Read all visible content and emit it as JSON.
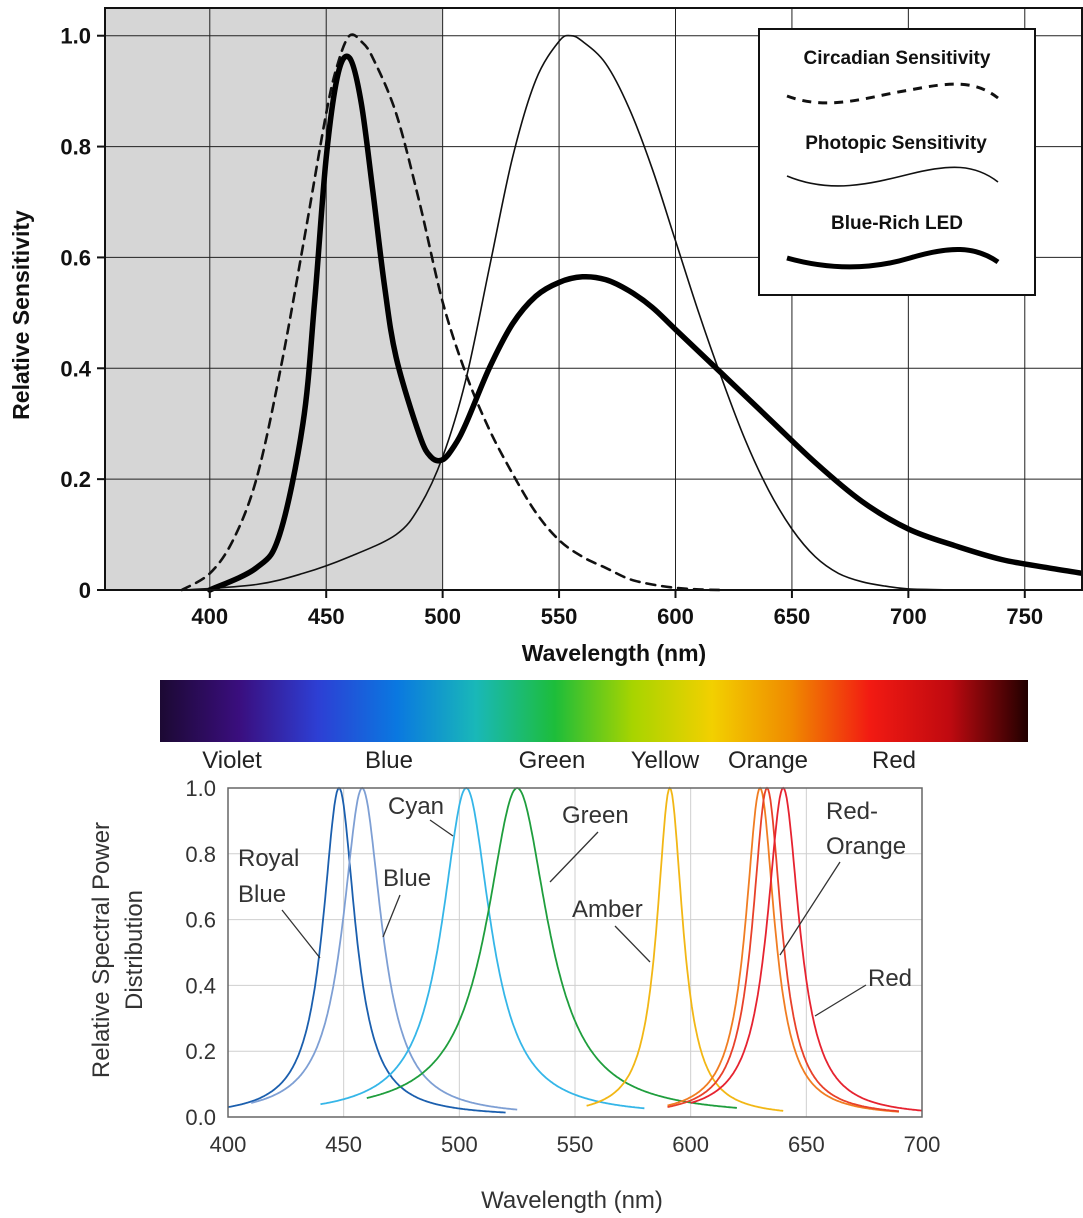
{
  "chart_data": [
    {
      "type": "line",
      "title": "",
      "xlabel": "Wavelength (nm)",
      "ylabel": "Relative Sensitivity",
      "xlim": [
        355,
        775
      ],
      "ylim": [
        0,
        1.05
      ],
      "x_ticks": [
        "400",
        "450",
        "500",
        "550",
        "600",
        "650",
        "700",
        "750"
      ],
      "y_ticks": [
        "0",
        "0.2",
        "0.4",
        "0.6",
        "0.8",
        "1.0"
      ],
      "grid": true,
      "shaded_region": [
        355,
        500
      ],
      "legend_position": "top-right",
      "legend": [
        "Circadian Sensitivity",
        "Photopic Sensitivity",
        "Blue-Rich LED"
      ],
      "series": [
        {
          "name": "Circadian Sensitivity",
          "style": "dashed",
          "color": "#111111",
          "x": [
            388,
            400,
            410,
            420,
            430,
            440,
            450,
            455,
            460,
            465,
            470,
            480,
            490,
            500,
            510,
            520,
            530,
            540,
            550,
            560,
            570,
            580,
            590,
            600,
            610,
            620
          ],
          "y": [
            0.0,
            0.03,
            0.09,
            0.2,
            0.39,
            0.62,
            0.86,
            0.95,
            1.0,
            0.99,
            0.96,
            0.86,
            0.7,
            0.52,
            0.39,
            0.29,
            0.21,
            0.14,
            0.09,
            0.06,
            0.04,
            0.02,
            0.01,
            0.004,
            0.001,
            0.0
          ]
        },
        {
          "name": "Photopic Sensitivity",
          "style": "solid-thin",
          "color": "#111111",
          "x": [
            390,
            420,
            440,
            460,
            480,
            490,
            500,
            510,
            520,
            530,
            540,
            550,
            555,
            560,
            570,
            580,
            590,
            600,
            610,
            620,
            630,
            640,
            650,
            660,
            670,
            680,
            690,
            700,
            720
          ],
          "y": [
            0.0,
            0.01,
            0.03,
            0.06,
            0.1,
            0.15,
            0.24,
            0.38,
            0.58,
            0.78,
            0.92,
            0.99,
            1.0,
            0.99,
            0.95,
            0.87,
            0.76,
            0.63,
            0.5,
            0.38,
            0.27,
            0.18,
            0.11,
            0.06,
            0.03,
            0.015,
            0.007,
            0.002,
            0.0
          ]
        },
        {
          "name": "Blue-Rich LED",
          "style": "solid-thick",
          "color": "#000000",
          "x": [
            400,
            420,
            430,
            440,
            445,
            450,
            455,
            460,
            465,
            470,
            475,
            480,
            490,
            495,
            500,
            505,
            510,
            520,
            530,
            540,
            550,
            560,
            570,
            580,
            590,
            600,
            620,
            640,
            660,
            680,
            700,
            720,
            740,
            760,
            775
          ],
          "y": [
            0.0,
            0.04,
            0.1,
            0.3,
            0.52,
            0.78,
            0.93,
            0.96,
            0.88,
            0.72,
            0.55,
            0.42,
            0.28,
            0.24,
            0.235,
            0.26,
            0.3,
            0.4,
            0.48,
            0.53,
            0.555,
            0.565,
            0.56,
            0.54,
            0.51,
            0.47,
            0.39,
            0.31,
            0.23,
            0.16,
            0.11,
            0.08,
            0.055,
            0.04,
            0.03
          ]
        }
      ]
    },
    {
      "type": "line",
      "title": "",
      "xlabel": "Wavelength (nm)",
      "ylabel": [
        "Relative Spectral Power",
        "Distribution"
      ],
      "xlim": [
        400,
        700
      ],
      "ylim": [
        0,
        1.0
      ],
      "x_ticks": [
        "400",
        "450",
        "500",
        "550",
        "600",
        "650",
        "700"
      ],
      "y_ticks": [
        "0.0",
        "0.2",
        "0.4",
        "0.6",
        "0.8",
        "1.0"
      ],
      "grid": true,
      "color_bands": [
        "Violet",
        "Blue",
        "Green",
        "Yellow",
        "Orange",
        "Red"
      ],
      "series": [
        {
          "name": "Royal Blue",
          "color": "#1b5fae",
          "peak": 448,
          "width": 10,
          "range": [
            400,
            520
          ],
          "annotation": "Royal Blue"
        },
        {
          "name": "Blue",
          "color": "#7e9fd4",
          "peak": 458,
          "width": 12,
          "range": [
            410,
            525
          ],
          "annotation": "Blue"
        },
        {
          "name": "Cyan",
          "color": "#35b6e8",
          "peak": 503,
          "width": 15,
          "range": [
            440,
            580
          ],
          "annotation": "Cyan"
        },
        {
          "name": "Green",
          "color": "#1f9e3d",
          "peak": 525,
          "width": 19,
          "range": [
            460,
            620
          ],
          "annotation": "Green"
        },
        {
          "name": "Amber",
          "color": "#f2b715",
          "peak": 591,
          "width": 8,
          "range": [
            555,
            640
          ],
          "annotation": "Amber"
        },
        {
          "name": "Orange",
          "color": "#f07d22",
          "peak": 630,
          "width": 9,
          "range": [
            590,
            690
          ],
          "annotation": "Orange"
        },
        {
          "name": "Red-Orange",
          "color": "#e8412a",
          "peak": 633,
          "width": 9,
          "range": [
            590,
            690
          ],
          "annotation": "Red-Orange"
        },
        {
          "name": "Red",
          "color": "#e62330",
          "peak": 640,
          "width": 10,
          "range": [
            600,
            700
          ],
          "annotation": "Red"
        }
      ]
    }
  ],
  "spectrum_colors": [
    "#1c0933",
    "#3a0e7e",
    "#2d3fd4",
    "#0a78e0",
    "#19b8b8",
    "#1dbd3a",
    "#a8d400",
    "#f2d000",
    "#f08a00",
    "#f21a12",
    "#c00a10",
    "#200000"
  ]
}
